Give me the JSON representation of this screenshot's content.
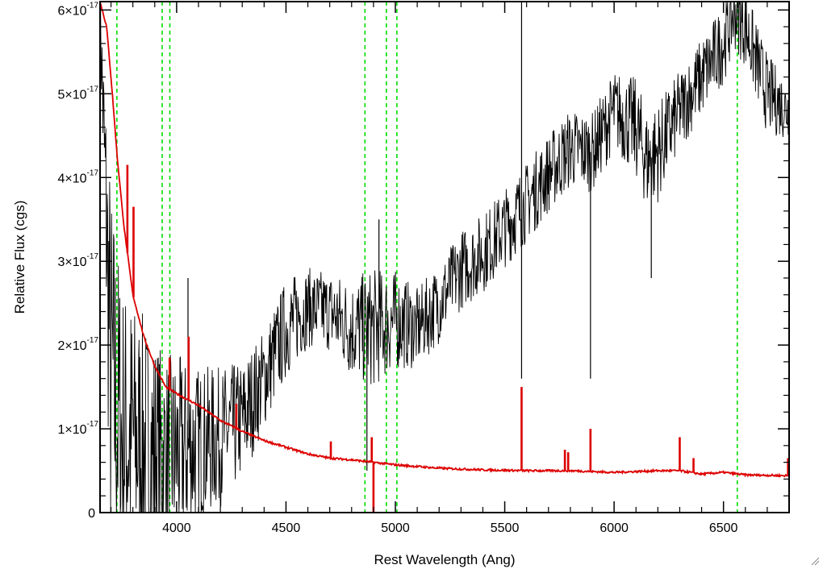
{
  "chart_data": {
    "type": "line",
    "title": "",
    "xlabel": "Rest Wavelength (Ang)",
    "ylabel": "Relative Flux (cgs)",
    "xlim": [
      3650,
      6800
    ],
    "ylim": [
      0,
      6.1e-17
    ],
    "x_ticks": [
      {
        "value": 4000,
        "label": "4000"
      },
      {
        "value": 4500,
        "label": "4500"
      },
      {
        "value": 5000,
        "label": "5000"
      },
      {
        "value": 5500,
        "label": "5500"
      },
      {
        "value": 6000,
        "label": "6000"
      },
      {
        "value": 6500,
        "label": "6500"
      }
    ],
    "y_ticks": [
      {
        "value": 0,
        "label": "0",
        "exp": ""
      },
      {
        "value": 1e-17,
        "label": "1×10",
        "exp": "-17"
      },
      {
        "value": 2e-17,
        "label": "2×10",
        "exp": "-17"
      },
      {
        "value": 3e-17,
        "label": "3×10",
        "exp": "-17"
      },
      {
        "value": 4e-17,
        "label": "4×10",
        "exp": "-17"
      },
      {
        "value": 5e-17,
        "label": "5×10",
        "exp": "-17"
      },
      {
        "value": 6e-17,
        "label": "6×10",
        "exp": "-17"
      }
    ],
    "vertical_lines": {
      "color": "#00dd00",
      "style": "dashed",
      "x": [
        3727,
        3934,
        3969,
        4861,
        4959,
        5007,
        6563
      ]
    },
    "series": [
      {
        "color": "#000000",
        "noisy": true,
        "points": [
          [
            3650,
            6e-17,
            3e-18
          ],
          [
            3700,
            1.6e-17,
            2e-17
          ],
          [
            3750,
            9e-18,
            1.6e-17
          ],
          [
            3800,
            9e-18,
            1.4e-17
          ],
          [
            3850,
            8e-18,
            1.3e-17
          ],
          [
            3900,
            7e-18,
            1.2e-17
          ],
          [
            3950,
            7e-18,
            1e-17
          ],
          [
            4000,
            7e-18,
            1e-17
          ],
          [
            4100,
            8e-18,
            8e-18
          ],
          [
            4200,
            9e-18,
            7e-18
          ],
          [
            4300,
            1.1e-17,
            6e-18
          ],
          [
            4400,
            1.6e-17,
            5e-18
          ],
          [
            4500,
            2.2e-17,
            5e-18
          ],
          [
            4600,
            2.45e-17,
            4e-18
          ],
          [
            4700,
            2.4e-17,
            4e-18
          ],
          [
            4800,
            2.2e-17,
            5e-18
          ],
          [
            4900,
            2.2e-17,
            6e-18
          ],
          [
            5000,
            2.3e-17,
            5e-18
          ],
          [
            5100,
            2.2e-17,
            4e-18
          ],
          [
            5200,
            2.5e-17,
            4e-18
          ],
          [
            5300,
            2.9e-17,
            4e-18
          ],
          [
            5400,
            3.1e-17,
            4e-18
          ],
          [
            5500,
            3.4e-17,
            4e-18
          ],
          [
            5600,
            3.7e-17,
            4e-18
          ],
          [
            5700,
            4.05e-17,
            4e-18
          ],
          [
            5800,
            4.35e-17,
            4e-18
          ],
          [
            5900,
            4.3e-17,
            4e-18
          ],
          [
            6000,
            4.8e-17,
            4e-18
          ],
          [
            6100,
            4.6e-17,
            5e-18
          ],
          [
            6150,
            4.2e-17,
            5e-18
          ],
          [
            6200,
            4.3e-17,
            5e-18
          ],
          [
            6300,
            4.8e-17,
            4e-18
          ],
          [
            6400,
            5.2e-17,
            4e-18
          ],
          [
            6500,
            5.6e-17,
            4e-18
          ],
          [
            6550,
            6e-17,
            4e-18
          ],
          [
            6600,
            5.8e-17,
            4e-18
          ],
          [
            6700,
            5e-17,
            4e-18
          ],
          [
            6800,
            4.8e-17,
            3e-18
          ]
        ],
        "features": [
          [
            5577,
            6.1e-17
          ],
          [
            5577,
            1.6e-17
          ],
          [
            5892,
            1.6e-17
          ],
          [
            6170,
            2.8e-17
          ],
          [
            4925,
            3.5e-17
          ],
          [
            4870,
            5e-18
          ],
          [
            4052,
            2.8e-17
          ]
        ]
      },
      {
        "color": "#dd0000",
        "noisy": false,
        "points": [
          [
            3650,
            6.1e-17
          ],
          [
            3680,
            5.8e-17
          ],
          [
            3700,
            5.2e-17
          ],
          [
            3730,
            4.2e-17
          ],
          [
            3760,
            3.4e-17
          ],
          [
            3800,
            2.6e-17
          ],
          [
            3850,
            2.1e-17
          ],
          [
            3900,
            1.75e-17
          ],
          [
            3950,
            1.5e-17
          ],
          [
            4000,
            1.42e-17
          ],
          [
            4100,
            1.28e-17
          ],
          [
            4200,
            1.1e-17
          ],
          [
            4300,
            9.7e-18
          ],
          [
            4400,
            8.6e-18
          ],
          [
            4500,
            7.8e-18
          ],
          [
            4600,
            7e-18
          ],
          [
            4700,
            6.5e-18
          ],
          [
            4800,
            6.3e-18
          ],
          [
            4900,
            6e-18
          ],
          [
            5000,
            5.7e-18
          ],
          [
            5200,
            5.3e-18
          ],
          [
            5400,
            5.1e-18
          ],
          [
            5600,
            5e-18
          ],
          [
            5800,
            5e-18
          ],
          [
            6000,
            4.8e-18
          ],
          [
            6200,
            5e-18
          ],
          [
            6300,
            5e-18
          ],
          [
            6400,
            4.6e-18
          ],
          [
            6500,
            4.8e-18
          ],
          [
            6600,
            4.5e-18
          ],
          [
            6800,
            4.4e-18
          ]
        ],
        "features": [
          [
            3775,
            4.15e-17
          ],
          [
            3803,
            3.65e-17
          ],
          [
            3968,
            1.85e-17
          ],
          [
            4055,
            2.1e-17
          ],
          [
            4273,
            1.3e-17
          ],
          [
            4705,
            8.5e-18
          ],
          [
            4892,
            9e-18
          ],
          [
            4900,
            0.0
          ],
          [
            5577,
            1.5e-17
          ],
          [
            5775,
            7.5e-18
          ],
          [
            5790,
            7.2e-18
          ],
          [
            5892,
            1e-17
          ],
          [
            6300,
            9e-18
          ],
          [
            6363,
            6.5e-18
          ],
          [
            6795,
            6.5e-18
          ]
        ]
      }
    ]
  }
}
